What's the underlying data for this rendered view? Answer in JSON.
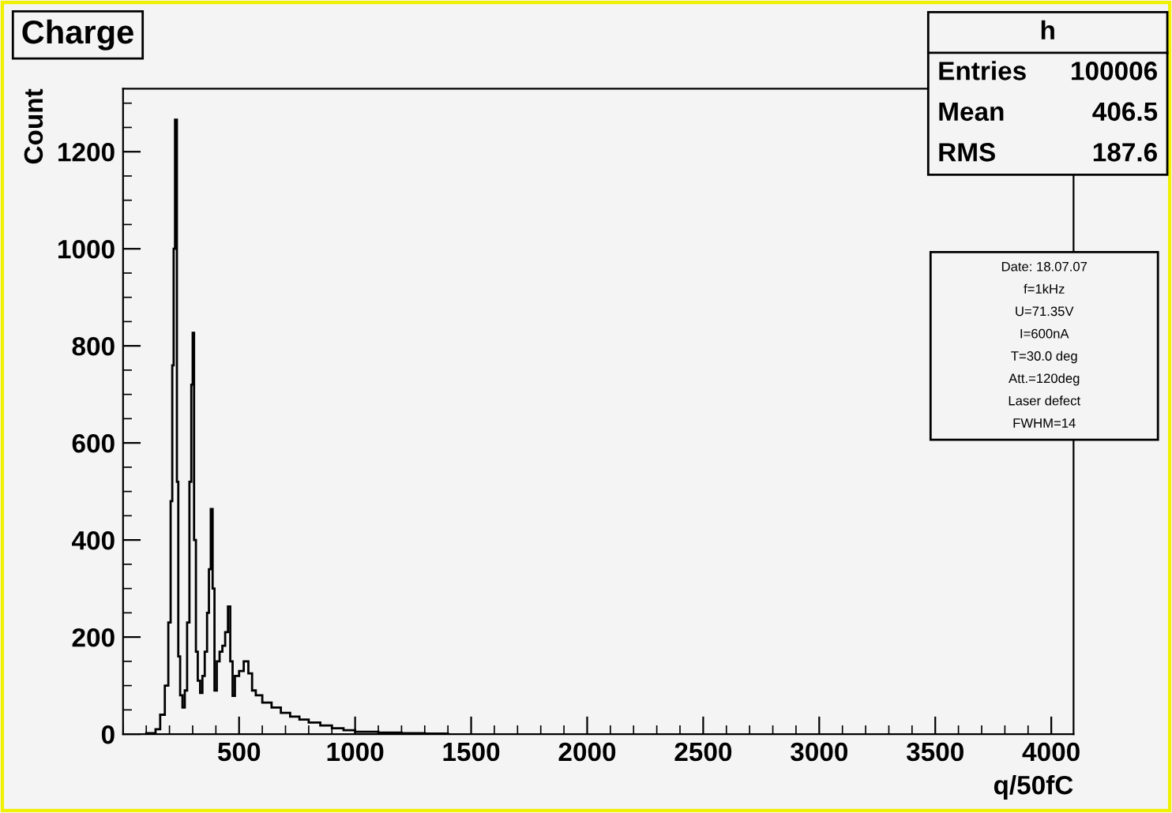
{
  "chart_data": {
    "type": "histogram",
    "title": "Charge",
    "xlabel": "q/50fC",
    "ylabel": "Count",
    "bins": [
      100,
      140,
      160,
      180,
      195,
      205,
      212,
      218,
      224,
      232,
      238,
      246,
      256,
      266,
      276,
      286,
      294,
      300,
      306,
      314,
      322,
      332,
      342,
      352,
      362,
      370,
      378,
      386,
      394,
      404,
      416,
      428,
      440,
      452,
      462,
      472,
      482,
      500,
      520,
      540,
      556,
      572,
      600,
      640,
      680,
      720,
      760,
      800,
      850,
      900,
      950,
      1000,
      1100,
      1200,
      1300,
      1400
    ],
    "values": [
      2,
      10,
      40,
      100,
      230,
      480,
      760,
      1000,
      1266,
      520,
      160,
      80,
      55,
      90,
      230,
      520,
      720,
      827,
      400,
      170,
      110,
      85,
      120,
      170,
      250,
      340,
      464,
      300,
      90,
      150,
      170,
      182,
      210,
      263,
      150,
      79,
      120,
      130,
      150,
      125,
      90,
      80,
      65,
      55,
      44,
      36,
      30,
      24,
      18,
      12,
      8,
      5,
      3,
      2,
      1
    ],
    "color": "#000000",
    "xlim": [
      0,
      4096
    ],
    "ylim": [
      0,
      1330
    ],
    "xticks": [
      500,
      1000,
      1500,
      2000,
      2500,
      3000,
      3500,
      4000
    ],
    "yticks": [
      0,
      200,
      400,
      600,
      800,
      1000,
      1200
    ],
    "grid": false,
    "annotations": [
      "h",
      "Entries",
      "100006",
      "Mean",
      "406.5",
      "RMS",
      "187.6",
      "Date: 18.07.07",
      "f=1kHz",
      "U=71.35V",
      "I=600nA",
      "T=30.0 deg",
      "Att.=120deg",
      "Laser defect",
      "FWHM=14"
    ]
  }
}
